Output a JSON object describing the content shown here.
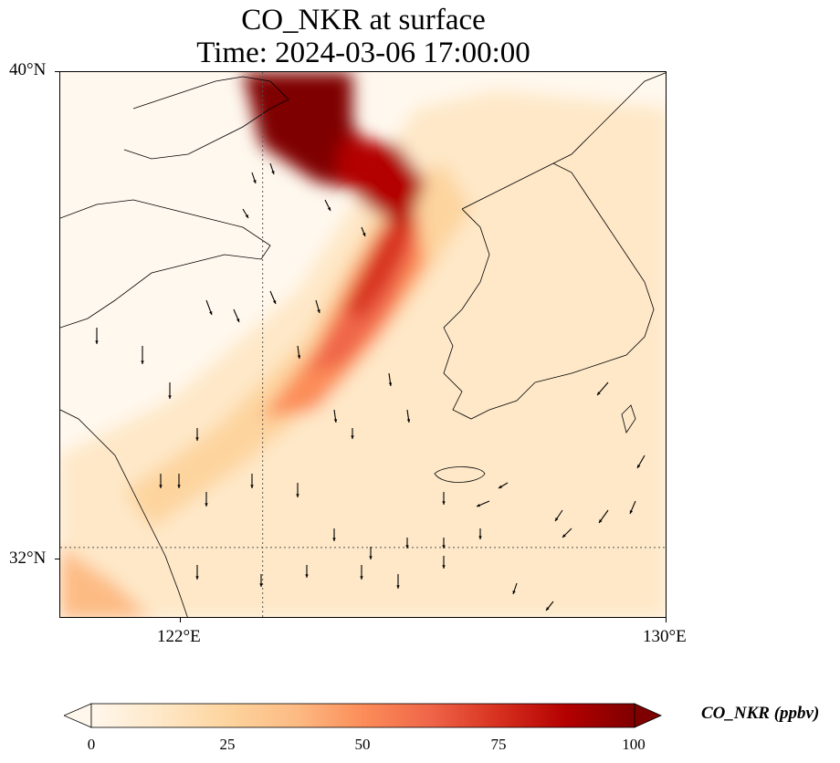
{
  "title": {
    "line1": "CO_NKR at surface",
    "line2": "Time: 2024-03-06 17:00:00"
  },
  "map": {
    "lon_range": [
      118,
      130
    ],
    "lat_range": [
      30.8,
      40
    ],
    "gridline_lons": [
      122
    ],
    "gridline_lats": [
      32
    ],
    "lat_ticks": [
      {
        "label": "40°N",
        "lat": 40
      },
      {
        "label": "32°N",
        "lat": 32
      }
    ],
    "lon_ticks": [
      {
        "label": "122°E",
        "lon": 122
      },
      {
        "label": "130°E",
        "lon": 130
      }
    ],
    "field_peak_ppbv": 100,
    "colormap": [
      "#fff7ec",
      "#fee8c8",
      "#fdd49e",
      "#fdbb84",
      "#fc8d59",
      "#ef6548",
      "#d7301f",
      "#b30000",
      "#7f0000"
    ]
  },
  "colorbar": {
    "label": "CO_NKR (ppbv)",
    "min": 0,
    "max": 100,
    "ticks": [
      "0",
      "25",
      "50",
      "75",
      "100"
    ],
    "extend": "both"
  }
}
